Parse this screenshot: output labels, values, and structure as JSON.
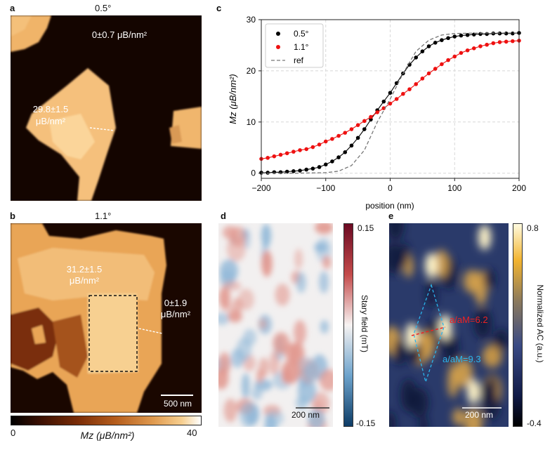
{
  "panels": {
    "a": {
      "label": "a",
      "title": "0.5°",
      "annot_bg": "0±0.7 μB/nm²",
      "annot_flake": "29.8±1.5",
      "annot_flake_unit": "μB/nm²"
    },
    "b": {
      "label": "b",
      "title": "1.1°",
      "annot_flake": "31.2±1.5",
      "annot_flake_unit": "μB/nm²",
      "annot_bg": "0±1.9",
      "annot_bg_unit": "μB/nm²",
      "scalebar": "500 nm"
    },
    "colorbar_ab": {
      "min": "0",
      "max": "40",
      "label": "Mz (μB/nm²)"
    },
    "d": {
      "label": "d",
      "scalebar": "200 nm",
      "cbar_max": "0.15",
      "cbar_min": "-0.15",
      "cbar_label": "Stary field (mT)"
    },
    "e": {
      "label": "e",
      "scalebar": "200 nm",
      "cbar_max": "0.8",
      "cbar_min": "-0.4",
      "cbar_label": "Normalized AC (a.u.)",
      "ratio_red": "a/aM=6.2",
      "ratio_blue": "a/aM=9.3"
    }
  },
  "chart_data": {
    "label": "c",
    "type": "line",
    "xlabel": "position (nm)",
    "ylabel": "Mz (μB/nm²)",
    "xlim": [
      -200,
      200
    ],
    "ylim": [
      -1,
      30
    ],
    "xticks": [
      -200,
      -100,
      0,
      100,
      200
    ],
    "yticks": [
      0,
      10,
      20,
      30
    ],
    "grid": true,
    "legend_position": "top-left",
    "series": [
      {
        "name": "0.5°",
        "kind": "scatter+fit",
        "color": "#000000",
        "x": [
          -200,
          -190,
          -180,
          -170,
          -160,
          -150,
          -140,
          -130,
          -120,
          -110,
          -100,
          -90,
          -80,
          -70,
          -60,
          -50,
          -40,
          -30,
          -20,
          -10,
          0,
          10,
          20,
          30,
          40,
          50,
          60,
          70,
          80,
          90,
          100,
          110,
          120,
          130,
          140,
          150,
          160,
          170,
          180,
          190,
          200
        ],
        "y": [
          0.1,
          0.1,
          0.2,
          0.2,
          0.3,
          0.4,
          0.5,
          0.7,
          0.9,
          1.2,
          1.7,
          2.3,
          3.1,
          4.1,
          5.4,
          6.9,
          8.6,
          10.5,
          12.3,
          14.0,
          15.7,
          17.6,
          19.5,
          21.2,
          22.6,
          23.8,
          24.8,
          25.5,
          26.0,
          26.4,
          26.7,
          26.9,
          27.0,
          27.1,
          27.2,
          27.2,
          27.3,
          27.3,
          27.3,
          27.3,
          27.4
        ]
      },
      {
        "name": "1.1°",
        "kind": "scatter+fit",
        "color": "#ee1111",
        "x": [
          -200,
          -190,
          -180,
          -170,
          -160,
          -150,
          -140,
          -130,
          -120,
          -110,
          -100,
          -90,
          -80,
          -70,
          -60,
          -50,
          -40,
          -30,
          -20,
          -10,
          0,
          10,
          20,
          30,
          40,
          50,
          60,
          70,
          80,
          90,
          100,
          110,
          120,
          130,
          140,
          150,
          160,
          170,
          180,
          190,
          200
        ],
        "y": [
          2.8,
          3.0,
          3.3,
          3.6,
          3.9,
          4.2,
          4.5,
          4.7,
          5.1,
          5.6,
          6.2,
          6.7,
          7.3,
          7.9,
          8.6,
          9.4,
          10.2,
          11.0,
          11.9,
          12.7,
          13.6,
          14.5,
          15.5,
          16.4,
          17.4,
          18.5,
          19.5,
          20.4,
          21.3,
          22.1,
          22.8,
          23.5,
          24.0,
          24.4,
          24.8,
          25.1,
          25.4,
          25.6,
          25.7,
          25.8,
          25.9
        ]
      },
      {
        "name": "ref",
        "kind": "dashed",
        "color": "#777777",
        "x": [
          -200,
          -150,
          -100,
          -80,
          -60,
          -40,
          -20,
          0,
          20,
          40,
          60,
          80,
          100,
          150,
          200
        ],
        "y": [
          0,
          0,
          0.1,
          0.4,
          1.5,
          4.5,
          10.0,
          14.5,
          19.5,
          23.8,
          26.0,
          27.0,
          27.3,
          27.4,
          27.4
        ]
      }
    ]
  }
}
